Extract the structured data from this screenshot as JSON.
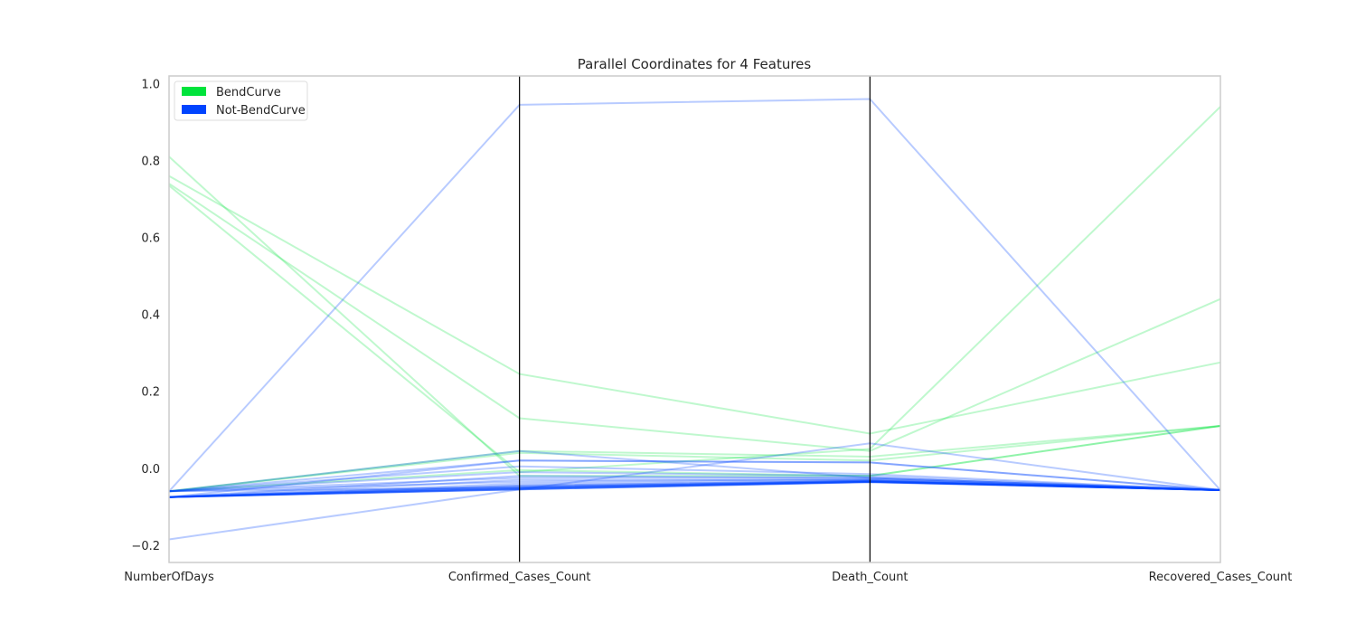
{
  "chart_data": {
    "type": "parallel_coordinates",
    "title": "Parallel Coordinates for 4 Features",
    "features": [
      "NumberOfDays",
      "Confirmed_Cases_Count",
      "Death_Count",
      "Recovered_Cases_Count"
    ],
    "ylim": [
      -0.245,
      1.02
    ],
    "yticks": [
      -0.2,
      0.0,
      0.2,
      0.4,
      0.6,
      0.8,
      1.0
    ],
    "ytick_labels": [
      "−0.2",
      "0.0",
      "0.2",
      "0.4",
      "0.6",
      "0.8",
      "1.0"
    ],
    "grid": false,
    "legend_position": "top-left",
    "colors": {
      "BendCurve": "#00e33b",
      "Not-BendCurve": "#0044ff",
      "axis_line": "#000000",
      "frame": "#cccccc"
    },
    "legend": [
      {
        "name": "BendCurve",
        "color": "#00e33b"
      },
      {
        "name": "Not-BendCurve",
        "color": "#0044ff"
      }
    ],
    "series": [
      {
        "name": "BendCurve",
        "color": "#00e33b",
        "lines": [
          [
            0.81,
            -0.02,
            -0.02,
            0.11
          ],
          [
            0.76,
            0.245,
            0.09,
            0.275
          ],
          [
            0.74,
            0.13,
            0.045,
            0.44
          ],
          [
            0.735,
            -0.01,
            0.05,
            0.94
          ],
          [
            -0.06,
            0.045,
            0.03,
            0.11
          ],
          [
            -0.06,
            0.04,
            0.02,
            0.11
          ],
          [
            -0.06,
            -0.005,
            -0.02,
            0.11
          ]
        ]
      },
      {
        "name": "Not-BendCurve",
        "color": "#0044ff",
        "lines": [
          [
            -0.06,
            0.945,
            0.96,
            -0.057
          ],
          [
            -0.185,
            -0.055,
            0.065,
            -0.057
          ],
          [
            -0.06,
            0.045,
            -0.025,
            -0.057
          ],
          [
            -0.06,
            0.02,
            0.015,
            -0.057
          ],
          [
            -0.075,
            0.02,
            0.015,
            -0.057
          ],
          [
            -0.06,
            0.005,
            -0.015,
            -0.057
          ],
          [
            -0.06,
            -0.01,
            -0.02,
            -0.057
          ],
          [
            -0.075,
            -0.02,
            -0.025,
            -0.057
          ],
          [
            -0.06,
            -0.025,
            -0.025,
            -0.057
          ],
          [
            -0.075,
            -0.03,
            -0.03,
            -0.057
          ],
          [
            -0.06,
            -0.035,
            -0.028,
            -0.057
          ],
          [
            -0.075,
            -0.04,
            -0.03,
            -0.057
          ],
          [
            -0.075,
            -0.045,
            -0.033,
            -0.057
          ],
          [
            -0.075,
            -0.05,
            -0.035,
            -0.057
          ],
          [
            -0.075,
            -0.052,
            -0.035,
            -0.057
          ],
          [
            -0.075,
            -0.055,
            -0.036,
            -0.057
          ],
          [
            -0.075,
            -0.055,
            -0.036,
            -0.057
          ],
          [
            -0.075,
            -0.054,
            -0.035,
            -0.057
          ],
          [
            -0.06,
            -0.05,
            -0.032,
            -0.057
          ],
          [
            -0.075,
            -0.048,
            -0.034,
            -0.057
          ],
          [
            -0.075,
            -0.045,
            -0.033,
            -0.057
          ],
          [
            -0.075,
            -0.055,
            -0.036,
            -0.057
          ],
          [
            -0.075,
            -0.053,
            -0.035,
            -0.057
          ],
          [
            -0.075,
            -0.05,
            -0.034,
            -0.057
          ]
        ]
      }
    ]
  }
}
